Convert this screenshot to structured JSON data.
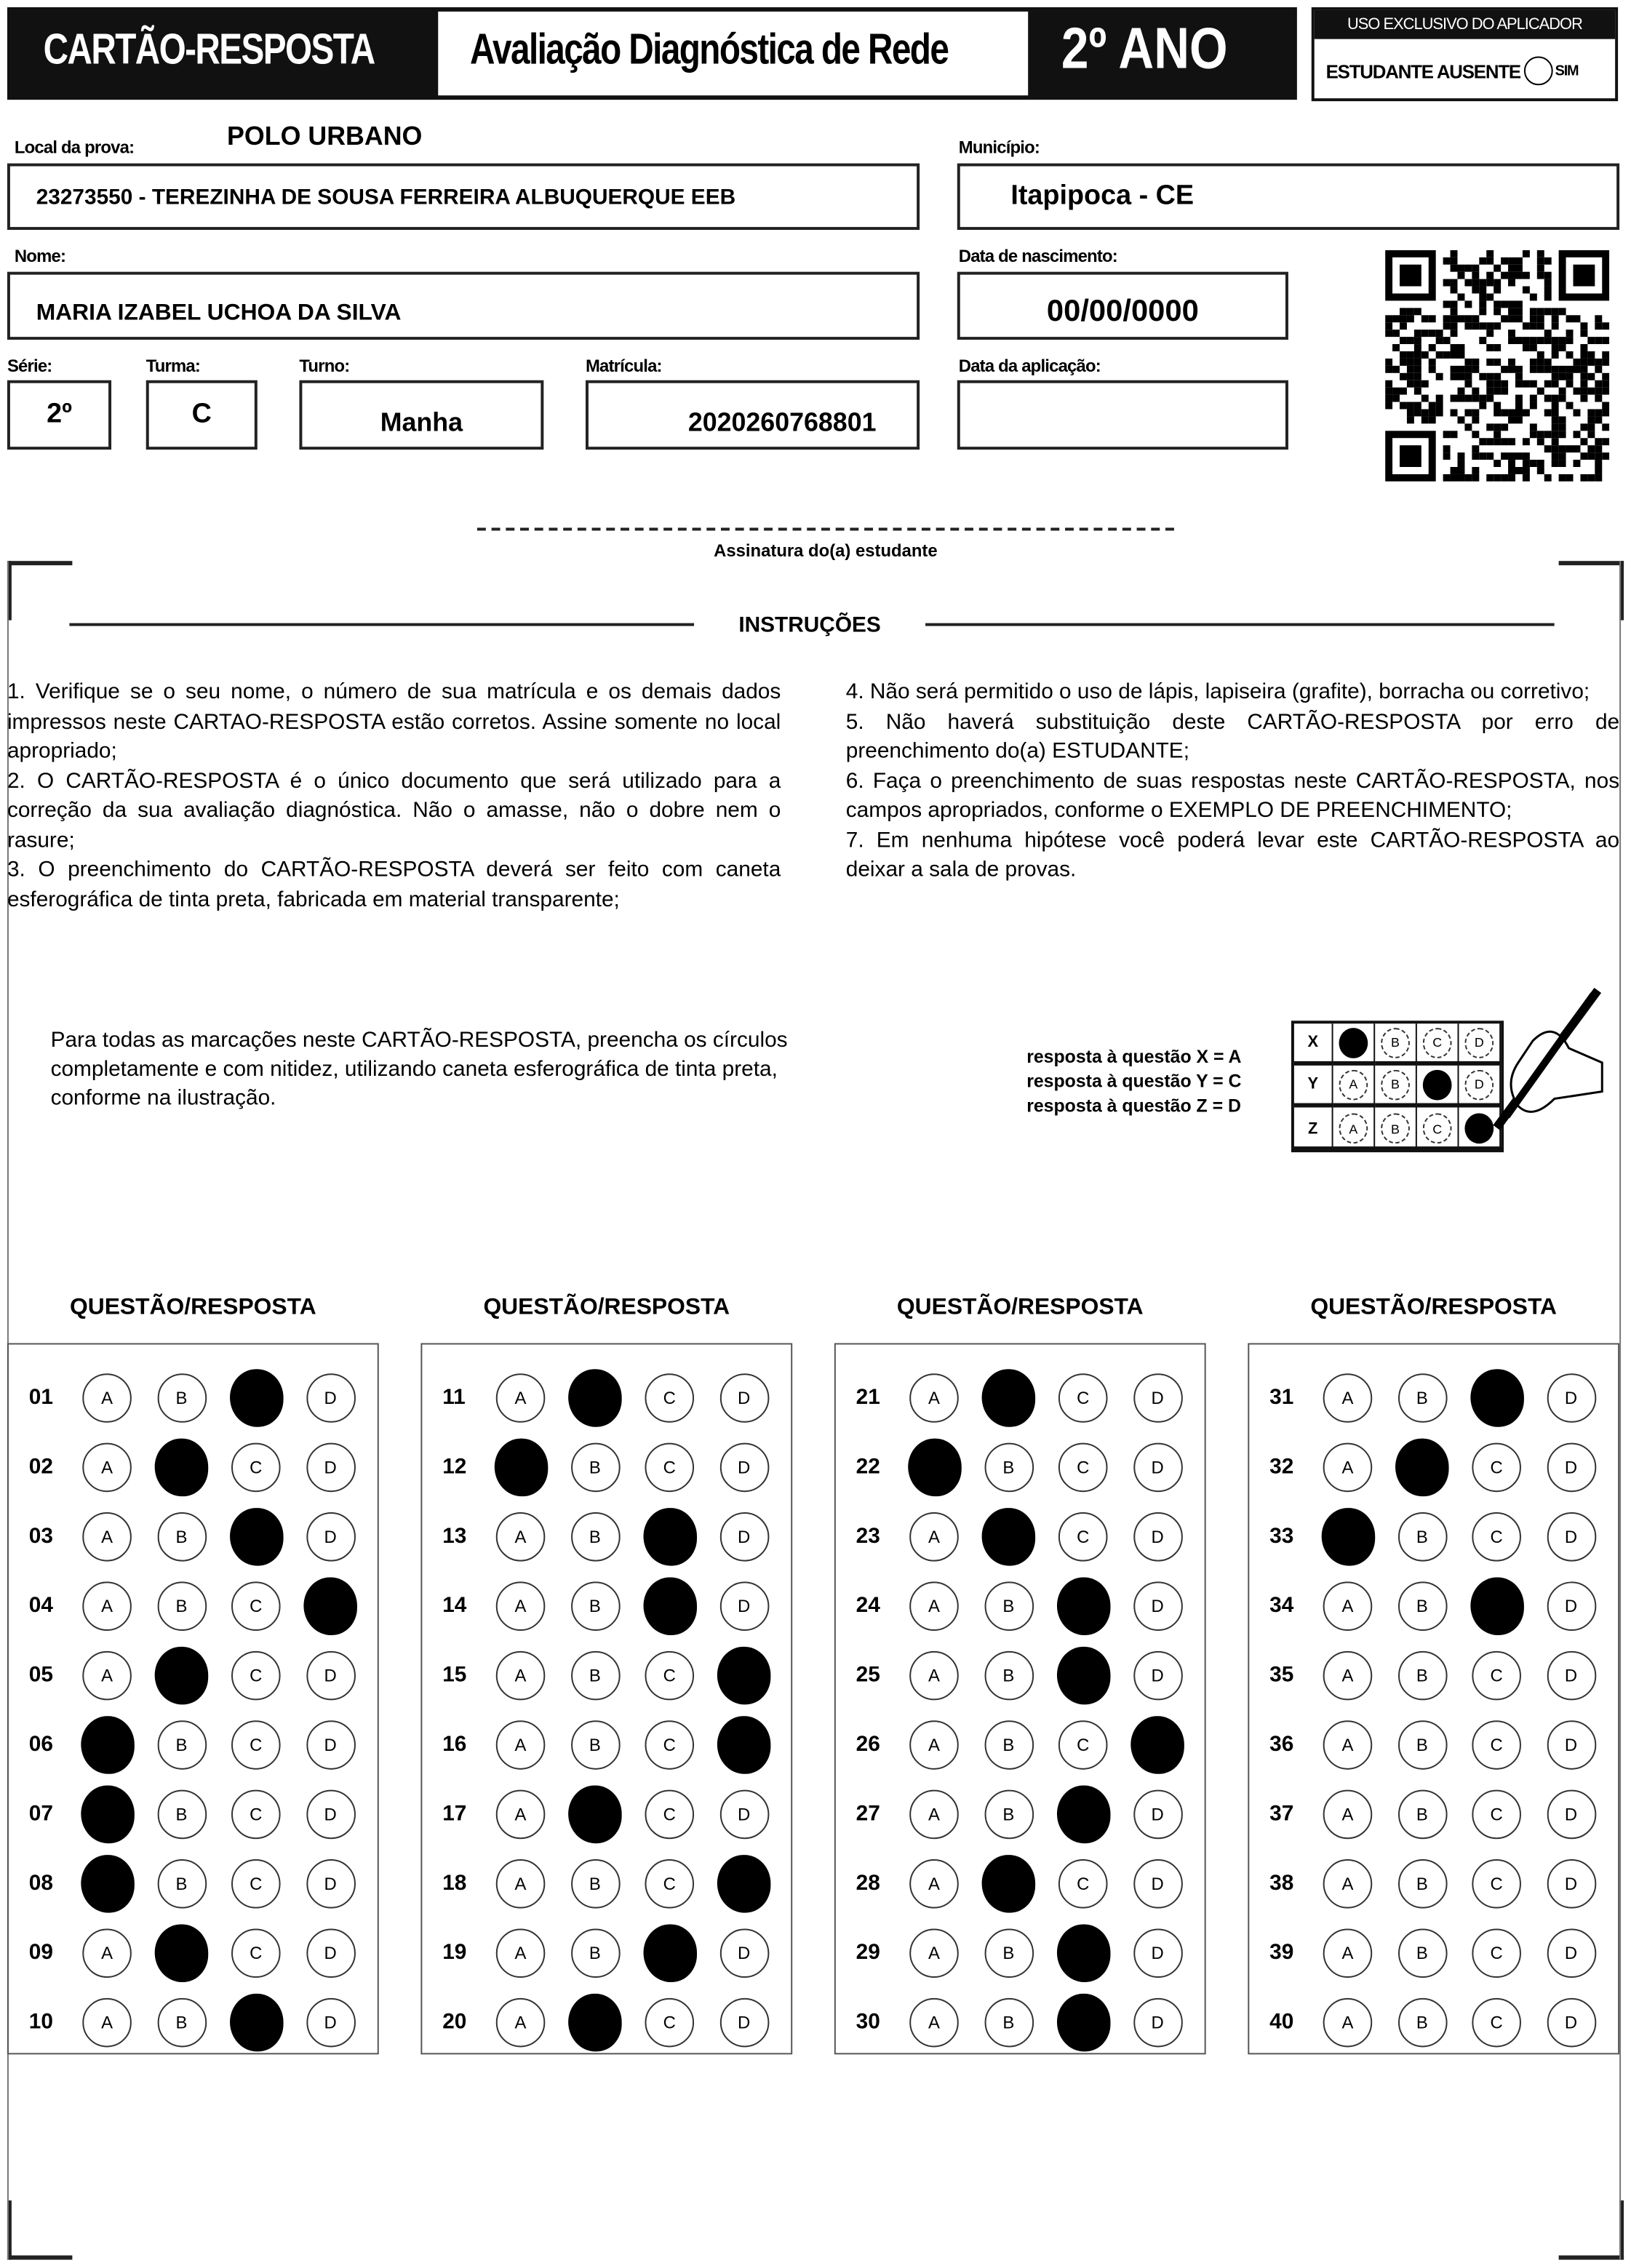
{
  "header": {
    "card_title": "CARTÃO-RESPOSTA",
    "assessment_title": "Avaliação Diagnóstica de Rede",
    "grade_title": "2º ANO",
    "applicator_box": {
      "title": "USO EXCLUSIVO DO APLICADOR",
      "absent_label": "ESTUDANTE AUSENTE",
      "yes_label": "SIM"
    }
  },
  "student": {
    "polo": "POLO URBANO",
    "local_label": "Local da prova:",
    "local_value": "23273550 - TEREZINHA DE SOUSA FERREIRA ALBUQUERQUE EEB",
    "municipio_label": "Município:",
    "municipio_value": "Itapipoca - CE",
    "nome_label": "Nome:",
    "nome_value": "MARIA IZABEL UCHOA DA SILVA",
    "nascimento_label": "Data de nascimento:",
    "nascimento_value": "00/00/0000",
    "serie_label": "Série:",
    "serie_value": "2º",
    "turma_label": "Turma:",
    "turma_value": "C",
    "turno_label": "Turno:",
    "turno_value": "Manha",
    "matricula_label": "Matrícula:",
    "matricula_value": "2020260768801",
    "aplicacao_label": "Data da aplicação:",
    "aplicacao_value": "",
    "signature_label": "Assinatura do(a) estudante"
  },
  "instructions": {
    "title": "INSTRUÇÕES",
    "left": [
      "1. Verifique se o seu nome, o número de sua matrícula e os demais dados impressos neste CARTAO-RESPOSTA estão corretos. Assine somente no local apropriado;",
      "2. O CARTÃO-RESPOSTA é o único documento que será utilizado para a correção da sua avaliação diagnóstica. Não o amasse, não o dobre nem o rasure;",
      "3. O preenchimento do CARTÃO-RESPOSTA deverá ser feito com caneta esferográfica de tinta preta, fabricada em material transparente;"
    ],
    "right": [
      "4. Não será permitido o uso de lápis, lapiseira (grafite), borracha ou corretivo;",
      "5. Não haverá substituição deste CARTÃO-RESPOSTA por erro de preenchimento do(a) ESTUDANTE;",
      "6. Faça o preenchimento de suas respostas neste CARTÃO-RESPOSTA, nos campos apropriados, conforme o EXEMPLO DE PREENCHIMENTO;",
      "7. Em nenhuma hipótese você poderá levar este CARTÃO-RESPOSTA ao deixar a sala de provas."
    ],
    "marking_note": "Para todas as marcações neste CARTÃO-RESPOSTA, preencha os círculos completamente e com nitidez, utilizando caneta esferográfica de tinta preta, conforme na ilustração.",
    "example_lines": [
      "resposta à questão X = A",
      "resposta à questão Y = C",
      "resposta à questão Z = D"
    ],
    "example_grid": [
      {
        "q": "X",
        "answer": "A"
      },
      {
        "q": "Y",
        "answer": "C"
      },
      {
        "q": "Z",
        "answer": "D"
      }
    ]
  },
  "answers": {
    "column_header": "QUESTÃO/RESPOSTA",
    "options": [
      "A",
      "B",
      "C",
      "D"
    ],
    "questions": [
      {
        "n": "01",
        "a": "C"
      },
      {
        "n": "02",
        "a": "B"
      },
      {
        "n": "03",
        "a": "C"
      },
      {
        "n": "04",
        "a": "D"
      },
      {
        "n": "05",
        "a": "B"
      },
      {
        "n": "06",
        "a": "A"
      },
      {
        "n": "07",
        "a": "A"
      },
      {
        "n": "08",
        "a": "A"
      },
      {
        "n": "09",
        "a": "B"
      },
      {
        "n": "10",
        "a": "C"
      },
      {
        "n": "11",
        "a": "B"
      },
      {
        "n": "12",
        "a": "A"
      },
      {
        "n": "13",
        "a": "C"
      },
      {
        "n": "14",
        "a": "C"
      },
      {
        "n": "15",
        "a": "D"
      },
      {
        "n": "16",
        "a": "D"
      },
      {
        "n": "17",
        "a": "B"
      },
      {
        "n": "18",
        "a": "D"
      },
      {
        "n": "19",
        "a": "C"
      },
      {
        "n": "20",
        "a": "B"
      },
      {
        "n": "21",
        "a": "B"
      },
      {
        "n": "22",
        "a": "A"
      },
      {
        "n": "23",
        "a": "B"
      },
      {
        "n": "24",
        "a": "C"
      },
      {
        "n": "25",
        "a": "C"
      },
      {
        "n": "26",
        "a": "D"
      },
      {
        "n": "27",
        "a": "C"
      },
      {
        "n": "28",
        "a": "B"
      },
      {
        "n": "29",
        "a": "C"
      },
      {
        "n": "30",
        "a": "C"
      },
      {
        "n": "31",
        "a": "C"
      },
      {
        "n": "32",
        "a": "B"
      },
      {
        "n": "33",
        "a": "A"
      },
      {
        "n": "34",
        "a": "C"
      },
      {
        "n": "35",
        "a": ""
      },
      {
        "n": "36",
        "a": ""
      },
      {
        "n": "37",
        "a": ""
      },
      {
        "n": "38",
        "a": ""
      },
      {
        "n": "39",
        "a": ""
      },
      {
        "n": "40",
        "a": ""
      }
    ]
  }
}
